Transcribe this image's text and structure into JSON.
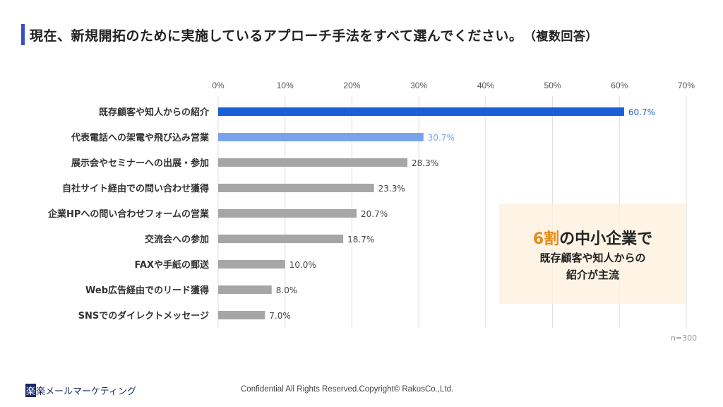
{
  "header": {
    "title": "現在、新規開拓のために実施しているアプローチ手法をすべて選んでください。",
    "subtitle": "（複数回答）"
  },
  "chart_data": {
    "type": "bar",
    "orientation": "horizontal",
    "categories": [
      "既存顧客や知人からの紹介",
      "代表電話への架電や飛び込み営業",
      "展示会やセミナーへの出展・参加",
      "自社サイト経由での問い合わせ獲得",
      "企業HPへの問い合わせフォームの営業",
      "交流会への参加",
      "FAXや手紙の郵送",
      "Web広告経由でのリード獲得",
      "SNSでのダイレクトメッセージ"
    ],
    "values": [
      60.7,
      30.7,
      28.3,
      23.3,
      20.7,
      18.7,
      10.0,
      8.0,
      7.0
    ],
    "labels": [
      "60.7%",
      "30.7%",
      "28.3%",
      "23.3%",
      "20.7%",
      "18.7%",
      "10.0%",
      "8.0%",
      "7.0%"
    ],
    "xlim": [
      0,
      70
    ],
    "ticks": [
      "0%",
      "10%",
      "20%",
      "30%",
      "40%",
      "50%",
      "60%",
      "70%"
    ],
    "grid": true,
    "colors": {
      "first": "#1a5fd6",
      "second": "#7aa3ea",
      "rest": "#a6a6a6",
      "grid": "#dddddd"
    }
  },
  "callout": {
    "highlight": "6割",
    "line1_rest": "の中小企業で",
    "line2": "既存顧客や知人からの",
    "line3": "紹介が主流"
  },
  "sample": "n=300",
  "footer": {
    "logo_mark": "楽",
    "logo_text": "楽メールマーケティング",
    "copyright": "Confidential All Rights Reserved.Copyright© RakusCo.,Ltd."
  }
}
